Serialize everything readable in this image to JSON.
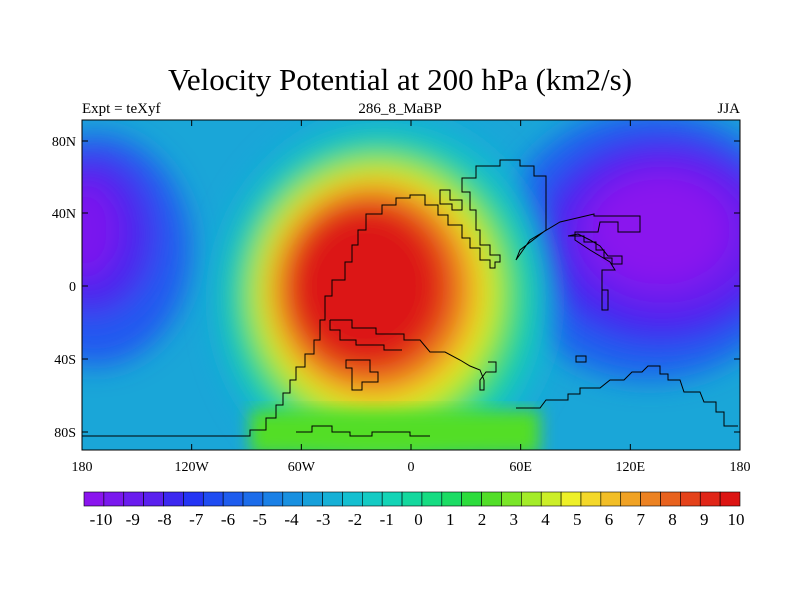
{
  "title": "Velocity Potential at 200 hPa (km2/s)",
  "left_subtitle": "Expt = teXyf",
  "center_subtitle": "286_8_MaBP",
  "right_subtitle": "JJA",
  "map": {
    "type": "heatmap",
    "projection": "cylindrical equidistant",
    "lon_range": [
      -180,
      180
    ],
    "lat_range": [
      -90,
      90
    ],
    "x_tick_labels": [
      "180",
      "120W",
      "60W",
      "0",
      "60E",
      "120E",
      "180"
    ],
    "y_tick_labels": [
      "80N",
      "40N",
      "0",
      "40S",
      "80S"
    ],
    "features": [
      {
        "name": "positive center",
        "lon": -35,
        "lat": -10,
        "value": 10
      },
      {
        "name": "negative center",
        "lon": 120,
        "lat": 20,
        "value": -10
      },
      {
        "name": "negative western edge",
        "lon": -180,
        "lat": 20,
        "value": -8
      }
    ],
    "coastlines": "blocky land outlines (paleo-continent)"
  },
  "colorbar": {
    "labels": [
      "-10",
      "-9",
      "-8",
      "-7",
      "-6",
      "-5",
      "-4",
      "-3",
      "-2",
      "-1",
      "0",
      "1",
      "2",
      "3",
      "4",
      "5",
      "6",
      "7",
      "8",
      "9",
      "10"
    ],
    "colors": [
      "#8a14ee",
      "#7a18ee",
      "#6a1cee",
      "#5a20ee",
      "#3c28f0",
      "#2434f4",
      "#1f4cf2",
      "#1e5cee",
      "#1c6cea",
      "#1a80e6",
      "#1990e0",
      "#17a0da",
      "#16b0d6",
      "#14bfd0",
      "#14cbc4",
      "#13d4b6",
      "#14d89e",
      "#16dc82",
      "#1cdc64",
      "#2ddc3c",
      "#52de28",
      "#7ae628",
      "#a4ec28",
      "#ccee28",
      "#eef028",
      "#f4d82a",
      "#f2be26",
      "#f0a224",
      "#ec8222",
      "#e8621e",
      "#e4421a",
      "#e02618",
      "#dc1412"
    ]
  }
}
